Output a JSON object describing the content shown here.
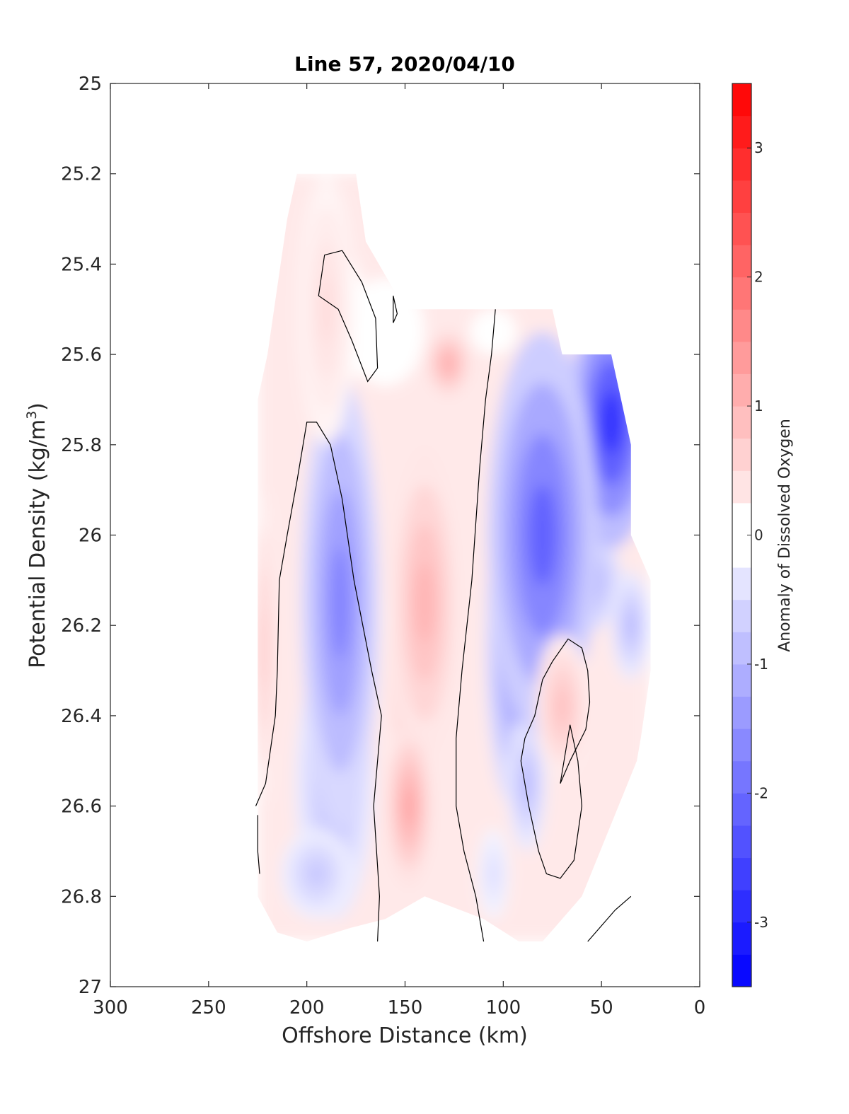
{
  "chart_data": {
    "type": "heatmap",
    "subtype": "filled-contour",
    "title": "Line 57, 2020/04/10",
    "xlabel": "Offshore Distance (km)",
    "ylabel_main": "Potential Density (kg/m",
    "ylabel_sup": "3",
    "ylabel_close": ")",
    "xlim": [
      300,
      0
    ],
    "x_reversed": true,
    "ylim": [
      25,
      27
    ],
    "y_reversed": true,
    "xticks": [
      300,
      250,
      200,
      150,
      100,
      50,
      0
    ],
    "xtick_labels": [
      "300",
      "250",
      "200",
      "150",
      "100",
      "50",
      "0"
    ],
    "yticks": [
      25,
      25.2,
      25.4,
      25.6,
      25.8,
      26,
      26.2,
      26.4,
      26.6,
      26.8,
      27
    ],
    "ytick_labels": [
      "25",
      "25.2",
      "25.4",
      "25.6",
      "25.8",
      "26",
      "26.2",
      "26.4",
      "26.6",
      "26.8",
      "27"
    ],
    "colorbar": {
      "label": "Anomaly of Dissolved Oxygen",
      "limits": [
        -3.5,
        3.5
      ],
      "level_step": 0.25,
      "ticks": [
        -3,
        -2,
        -1,
        0,
        1,
        2,
        3
      ],
      "tick_labels": [
        "-3",
        "-2",
        "-1",
        "0",
        "1",
        "2",
        "3"
      ],
      "colormap": "blue-white-red",
      "low_color": "#0000ff",
      "mid_color": "#ffffff",
      "high_color": "#ff0000"
    },
    "regions": [
      {
        "name": "nearshore low-oxygen core",
        "peak_anomaly": -3.0,
        "x_center": 45,
        "y_center": 25.75
      },
      {
        "name": "shelf-break low-oxygen band",
        "peak_anomaly": -2.3,
        "x_center": 80,
        "y_center": 26.0
      },
      {
        "name": "offshore low-oxygen tongue",
        "peak_anomaly": -1.8,
        "x_center": 183,
        "y_center": 26.15
      },
      {
        "name": "mid-section high-oxygen band",
        "peak_anomaly": 1.1,
        "x_center": 140,
        "y_center": 26.15
      },
      {
        "name": "deep high-oxygen lens",
        "peak_anomaly": 1.3,
        "x_center": 148,
        "y_center": 26.6
      },
      {
        "name": "upper-slope high-oxygen patch",
        "peak_anomaly": 1.2,
        "x_center": 128,
        "y_center": 25.62
      },
      {
        "name": "nearshore deep high-oxygen patch",
        "peak_anomaly": 0.9,
        "x_center": 70,
        "y_center": 26.38
      },
      {
        "name": "offshore surface high-oxygen strip",
        "peak_anomaly": 0.5,
        "x_center": 190,
        "y_center": 25.5
      },
      {
        "name": "western edge high-oxygen strip",
        "peak_anomaly": 0.8,
        "x_center": 222,
        "y_center": 26.25
      }
    ],
    "zero_contours": [
      [
        [
          182,
          25.37
        ],
        [
          172,
          25.44
        ],
        [
          165,
          25.52
        ],
        [
          164,
          25.63
        ],
        [
          169,
          25.66
        ],
        [
          177,
          25.57
        ],
        [
          184,
          25.5
        ],
        [
          194,
          25.47
        ],
        [
          191,
          25.38
        ],
        [
          182,
          25.37
        ]
      ],
      [
        [
          156,
          25.47
        ],
        [
          154,
          25.51
        ],
        [
          156,
          25.53
        ],
        [
          156,
          25.47
        ]
      ],
      [
        [
          104,
          25.5
        ],
        [
          106,
          25.6
        ],
        [
          109,
          25.7
        ],
        [
          112,
          25.85
        ],
        [
          116,
          26.1
        ],
        [
          121,
          26.3
        ],
        [
          124,
          26.45
        ],
        [
          124,
          26.55
        ],
        [
          124,
          26.6
        ],
        [
          120,
          26.7
        ],
        [
          114,
          26.8
        ],
        [
          110,
          26.9
        ]
      ],
      [
        [
          226,
          26.6
        ],
        [
          221,
          26.55
        ],
        [
          216,
          26.4
        ],
        [
          215,
          26.3
        ],
        [
          214,
          26.1
        ],
        [
          210,
          26.0
        ],
        [
          205,
          25.88
        ],
        [
          200,
          25.75
        ],
        [
          195,
          25.75
        ],
        [
          188,
          25.8
        ],
        [
          182,
          25.92
        ],
        [
          176,
          26.1
        ],
        [
          167,
          26.3
        ],
        [
          162,
          26.4
        ],
        [
          166,
          26.6
        ],
        [
          163,
          26.8
        ],
        [
          164,
          26.9
        ]
      ],
      [
        [
          225,
          26.62
        ],
        [
          225,
          26.7
        ],
        [
          224,
          26.75
        ]
      ],
      [
        [
          71,
          26.55
        ],
        [
          66,
          26.5
        ],
        [
          58,
          26.43
        ],
        [
          56,
          26.37
        ],
        [
          57,
          26.3
        ],
        [
          60,
          26.25
        ],
        [
          67,
          26.23
        ],
        [
          75,
          26.28
        ],
        [
          80,
          26.32
        ],
        [
          84,
          26.4
        ],
        [
          89,
          26.45
        ],
        [
          91,
          26.5
        ],
        [
          87,
          26.6
        ],
        [
          82,
          26.7
        ],
        [
          78,
          26.75
        ],
        [
          71,
          26.76
        ],
        [
          64,
          26.72
        ],
        [
          60,
          26.6
        ],
        [
          62,
          26.5
        ],
        [
          66,
          26.42
        ],
        [
          71,
          26.55
        ]
      ],
      [
        [
          57,
          26.9
        ],
        [
          51,
          26.87
        ],
        [
          43,
          26.83
        ],
        [
          35,
          26.8
        ]
      ]
    ]
  }
}
